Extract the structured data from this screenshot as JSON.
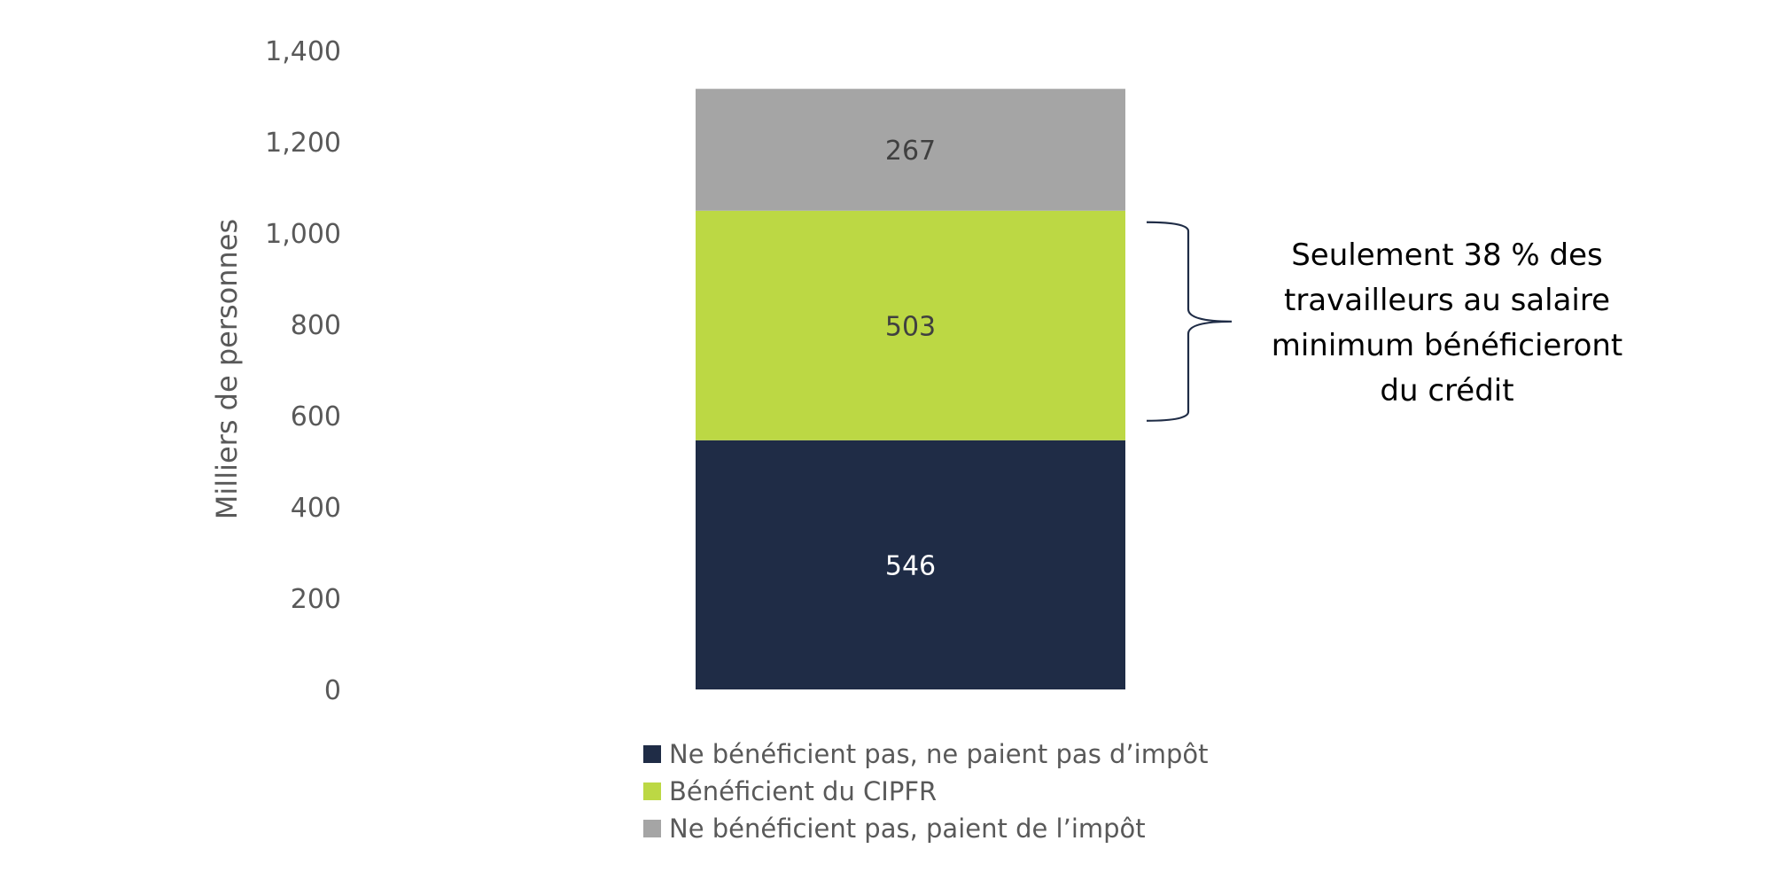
{
  "chart_data": {
    "type": "bar",
    "stacked": true,
    "categories": [
      ""
    ],
    "series": [
      {
        "name": "Ne bénéficient pas, ne paient pas d’impôt",
        "values": [
          546
        ],
        "color": "#1f2c46",
        "label_color": "#ffffff"
      },
      {
        "name": "Bénéficient du CIPFR",
        "values": [
          503
        ],
        "color": "#bcd844",
        "label_color": "#404040"
      },
      {
        "name": "Ne bénéficient pas, paient de l’impôt",
        "values": [
          267
        ],
        "color": "#a5a5a5",
        "label_color": "#404040"
      }
    ],
    "ylabel": "Milliers de personnes",
    "ylim": [
      0,
      1400
    ],
    "yticks": [
      0,
      200,
      400,
      600,
      800,
      1000,
      1200,
      1400
    ],
    "ytick_labels": [
      "0",
      "200",
      "400",
      "600",
      "800",
      "1,000",
      "1,200",
      "1,400"
    ],
    "grid": false,
    "legend_position": "bottom",
    "annotation": {
      "lines": [
        "Seulement 38 % des",
        "travailleurs au salaire",
        "minimum bénéficieront",
        "du crédit"
      ],
      "brace_spans_series": 1
    }
  }
}
